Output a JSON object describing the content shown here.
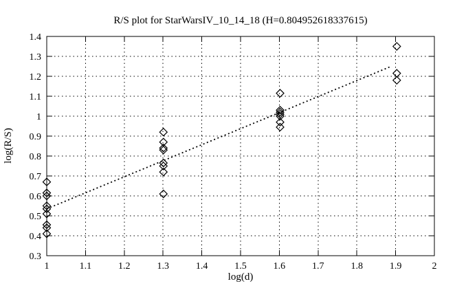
{
  "figure": {
    "background": "#ffffff",
    "foreground": "#000000"
  },
  "chart_data": {
    "type": "scatter",
    "title": "R/S plot for StarWarsIV_10_14_18 (H=0.804952618337615)",
    "xlabel": "log(d)",
    "ylabel": "log(R/S)",
    "xlim": [
      1,
      2
    ],
    "ylim": [
      0.3,
      1.4
    ],
    "grid": true,
    "grid_style": "dotted",
    "marker": "open-diamond",
    "marker_color": "#000000",
    "xticks": [
      [
        1,
        "1"
      ],
      [
        1.1,
        "1.1"
      ],
      [
        1.2,
        "1.2"
      ],
      [
        1.3,
        "1.3"
      ],
      [
        1.4,
        "1.4"
      ],
      [
        1.5,
        "1.5"
      ],
      [
        1.6,
        "1.6"
      ],
      [
        1.7,
        "1.7"
      ],
      [
        1.8,
        "1.8"
      ],
      [
        1.9,
        "1.9"
      ],
      [
        2,
        "2"
      ]
    ],
    "yticks": [
      [
        0.3,
        "0.3"
      ],
      [
        0.4,
        "0.4"
      ],
      [
        0.5,
        "0.5"
      ],
      [
        0.6,
        "0.6"
      ],
      [
        0.7,
        "0.7"
      ],
      [
        0.8,
        "0.8"
      ],
      [
        0.9,
        "0.9"
      ],
      [
        1,
        "1"
      ],
      [
        1.1,
        "1.1"
      ],
      [
        1.2,
        "1.2"
      ],
      [
        1.3,
        "1.3"
      ],
      [
        1.4,
        "1.4"
      ]
    ],
    "clusters": [
      {
        "log_d": 1.0,
        "values": [
          0.67,
          0.615,
          0.6,
          0.55,
          0.535,
          0.51,
          0.455,
          0.44,
          0.41
        ]
      },
      {
        "log_d": 1.301,
        "values": [
          0.92,
          0.87,
          0.84,
          0.83,
          0.765,
          0.75,
          0.72,
          0.61
        ]
      },
      {
        "log_d": 1.602,
        "values": [
          1.115,
          1.03,
          1.02,
          1.01,
          1.0,
          0.97,
          0.945
        ]
      },
      {
        "log_d": 1.903,
        "values": [
          1.35,
          1.215,
          1.18
        ]
      }
    ],
    "fit_line": {
      "H": 0.804952618337615,
      "style": "dotted",
      "x_start": 1.0,
      "y_start": 0.535,
      "x_end": 1.89,
      "y_end": 1.251
    }
  }
}
